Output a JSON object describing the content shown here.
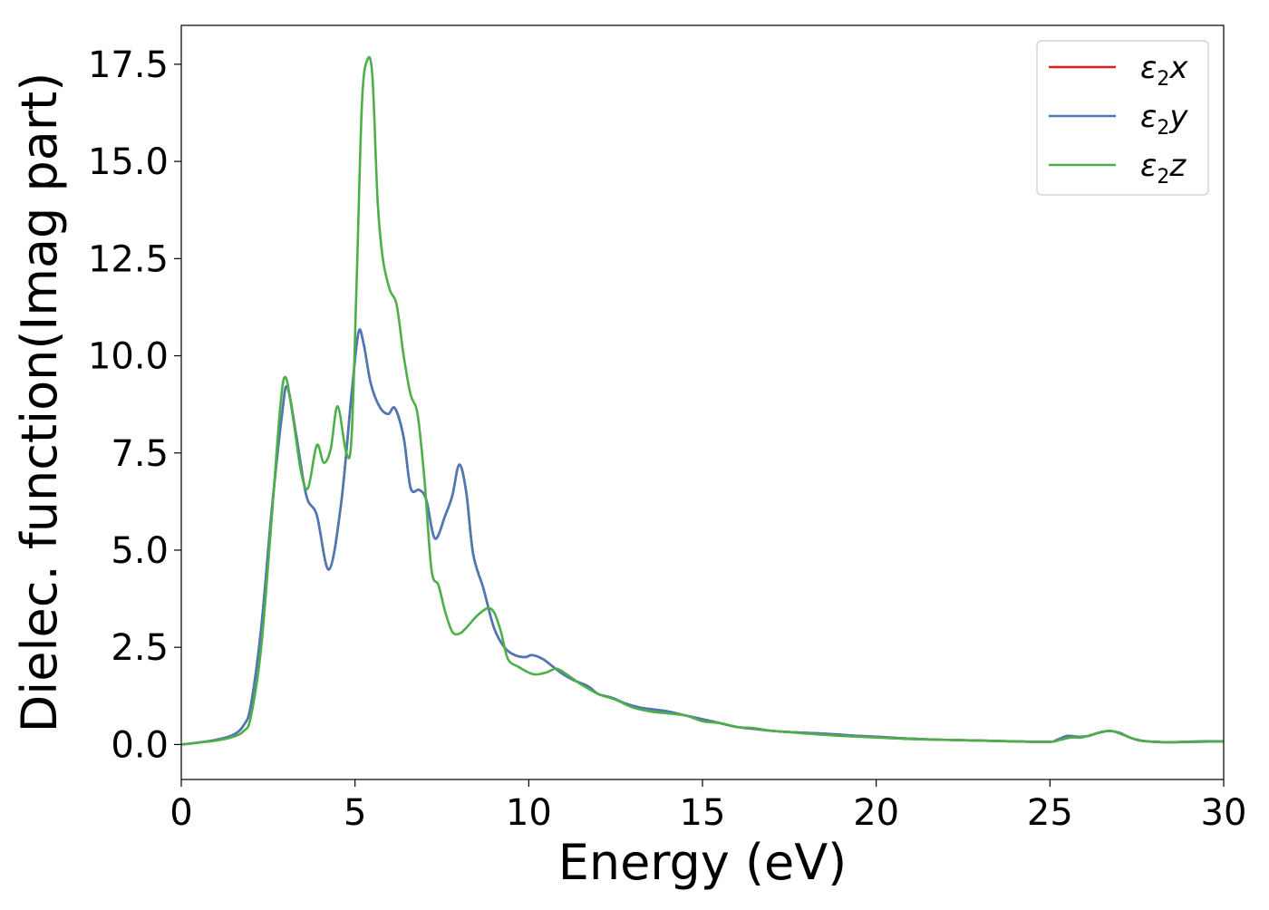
{
  "chart_data": {
    "type": "line",
    "title": "",
    "xlabel": "Energy (eV)",
    "ylabel": "Dielec. function(Imag part)",
    "xlim": [
      0,
      30
    ],
    "ylim": [
      -0.9,
      18.5
    ],
    "xticks": [
      0,
      5,
      10,
      15,
      20,
      25,
      30
    ],
    "xtick_labels": [
      "0",
      "5",
      "10",
      "15",
      "20",
      "25",
      "30"
    ],
    "yticks": [
      0.0,
      2.5,
      5.0,
      7.5,
      10.0,
      12.5,
      15.0,
      17.5
    ],
    "ytick_labels": [
      "0.0",
      "2.5",
      "5.0",
      "7.5",
      "10.0",
      "12.5",
      "15.0",
      "17.5"
    ],
    "grid": false,
    "legend_position": "top-right",
    "series": [
      {
        "name": "ε2x",
        "base": "ε",
        "sub": "2",
        "suffix": "x",
        "color": "#e41a1c",
        "x": [
          0,
          0.5,
          1.0,
          1.5,
          1.8,
          2.0,
          2.3,
          2.6,
          2.9,
          3.05,
          3.3,
          3.6,
          3.9,
          4.25,
          4.6,
          4.9,
          5.1,
          5.25,
          5.45,
          5.7,
          5.95,
          6.15,
          6.4,
          6.6,
          6.85,
          7.05,
          7.3,
          7.6,
          7.8,
          8.0,
          8.2,
          8.4,
          8.7,
          9.0,
          9.3,
          9.6,
          9.9,
          10.1,
          10.4,
          10.7,
          11.0,
          11.3,
          11.7,
          12.0,
          12.4,
          12.8,
          13.2,
          13.6,
          14.0,
          14.5,
          15.0,
          15.5,
          16.0,
          16.5,
          17.0,
          17.5,
          18.0,
          18.5,
          19.0,
          19.5,
          20.0,
          21.0,
          22.0,
          23.0,
          24.0,
          25.0,
          25.2,
          25.5,
          25.8,
          26.1,
          26.4,
          26.7,
          27.0,
          27.3,
          27.6,
          28.0,
          28.5,
          29.0,
          29.5,
          30.0
        ],
        "y": [
          0.0,
          0.05,
          0.12,
          0.25,
          0.5,
          1.0,
          3.0,
          6.0,
          8.5,
          9.2,
          8.0,
          6.4,
          5.9,
          4.5,
          6.2,
          9.0,
          10.6,
          10.3,
          9.3,
          8.7,
          8.5,
          8.65,
          7.9,
          6.6,
          6.55,
          6.3,
          5.3,
          5.9,
          6.4,
          7.2,
          6.5,
          4.9,
          4.0,
          3.0,
          2.5,
          2.3,
          2.25,
          2.3,
          2.2,
          2.0,
          1.8,
          1.65,
          1.5,
          1.3,
          1.2,
          1.05,
          0.95,
          0.9,
          0.85,
          0.75,
          0.65,
          0.55,
          0.45,
          0.4,
          0.35,
          0.32,
          0.3,
          0.28,
          0.25,
          0.22,
          0.2,
          0.15,
          0.12,
          0.1,
          0.08,
          0.07,
          0.12,
          0.22,
          0.2,
          0.22,
          0.3,
          0.35,
          0.3,
          0.18,
          0.1,
          0.07,
          0.06,
          0.07,
          0.08,
          0.08
        ]
      },
      {
        "name": "ε2y",
        "base": "ε",
        "sub": "2",
        "suffix": "y",
        "color": "#4a7ab5",
        "x": [
          0,
          0.5,
          1.0,
          1.5,
          1.8,
          2.0,
          2.3,
          2.6,
          2.9,
          3.05,
          3.3,
          3.6,
          3.9,
          4.25,
          4.6,
          4.9,
          5.1,
          5.25,
          5.45,
          5.7,
          5.95,
          6.15,
          6.4,
          6.6,
          6.85,
          7.05,
          7.3,
          7.6,
          7.8,
          8.0,
          8.2,
          8.4,
          8.7,
          9.0,
          9.3,
          9.6,
          9.9,
          10.1,
          10.4,
          10.7,
          11.0,
          11.3,
          11.7,
          12.0,
          12.4,
          12.8,
          13.2,
          13.6,
          14.0,
          14.5,
          15.0,
          15.5,
          16.0,
          16.5,
          17.0,
          17.5,
          18.0,
          18.5,
          19.0,
          19.5,
          20.0,
          21.0,
          22.0,
          23.0,
          24.0,
          25.0,
          25.2,
          25.5,
          25.8,
          26.1,
          26.4,
          26.7,
          27.0,
          27.3,
          27.6,
          28.0,
          28.5,
          29.0,
          29.5,
          30.0
        ],
        "y": [
          0.0,
          0.05,
          0.12,
          0.25,
          0.5,
          1.0,
          3.0,
          6.0,
          8.5,
          9.2,
          8.0,
          6.4,
          5.9,
          4.5,
          6.2,
          9.0,
          10.6,
          10.3,
          9.3,
          8.7,
          8.5,
          8.65,
          7.9,
          6.6,
          6.55,
          6.3,
          5.3,
          5.9,
          6.4,
          7.2,
          6.5,
          4.9,
          4.0,
          3.0,
          2.5,
          2.3,
          2.25,
          2.3,
          2.2,
          2.0,
          1.8,
          1.65,
          1.5,
          1.3,
          1.2,
          1.05,
          0.95,
          0.9,
          0.85,
          0.75,
          0.65,
          0.55,
          0.45,
          0.4,
          0.35,
          0.32,
          0.3,
          0.28,
          0.25,
          0.22,
          0.2,
          0.15,
          0.12,
          0.1,
          0.08,
          0.07,
          0.12,
          0.22,
          0.2,
          0.22,
          0.3,
          0.35,
          0.3,
          0.18,
          0.1,
          0.07,
          0.06,
          0.07,
          0.08,
          0.08
        ]
      },
      {
        "name": "ε2z",
        "base": "ε",
        "sub": "2",
        "suffix": "z",
        "color": "#4daf4a",
        "x": [
          0,
          0.5,
          1.0,
          1.5,
          1.8,
          2.0,
          2.3,
          2.6,
          2.85,
          3.0,
          3.2,
          3.45,
          3.65,
          3.9,
          4.1,
          4.3,
          4.5,
          4.75,
          4.9,
          5.05,
          5.2,
          5.35,
          5.5,
          5.65,
          5.8,
          6.0,
          6.2,
          6.4,
          6.6,
          6.8,
          7.0,
          7.2,
          7.4,
          7.6,
          7.8,
          8.0,
          8.2,
          8.5,
          8.8,
          9.0,
          9.2,
          9.4,
          9.7,
          10.0,
          10.2,
          10.5,
          10.8,
          11.1,
          11.5,
          12.0,
          12.5,
          13.0,
          13.5,
          14.0,
          14.5,
          15.0,
          15.5,
          16.0,
          16.5,
          17.0,
          17.5,
          18.0,
          18.5,
          19.0,
          20.0,
          21.0,
          22.0,
          23.0,
          24.0,
          25.0,
          25.3,
          25.6,
          25.9,
          26.2,
          26.5,
          26.8,
          27.1,
          27.4,
          27.8,
          28.2,
          28.8,
          29.4,
          30.0
        ],
        "y": [
          0.0,
          0.05,
          0.1,
          0.2,
          0.35,
          0.7,
          2.5,
          5.8,
          8.7,
          9.45,
          8.5,
          7.0,
          6.6,
          7.7,
          7.25,
          7.6,
          8.7,
          7.5,
          7.9,
          12.0,
          16.5,
          17.6,
          17.2,
          14.0,
          12.5,
          11.7,
          11.3,
          10.0,
          9.0,
          8.5,
          6.8,
          4.5,
          4.1,
          3.4,
          2.9,
          2.85,
          3.0,
          3.3,
          3.5,
          3.4,
          2.9,
          2.2,
          2.0,
          1.85,
          1.8,
          1.85,
          1.95,
          1.8,
          1.55,
          1.3,
          1.15,
          0.95,
          0.85,
          0.8,
          0.75,
          0.6,
          0.55,
          0.45,
          0.42,
          0.35,
          0.32,
          0.28,
          0.25,
          0.22,
          0.18,
          0.14,
          0.12,
          0.1,
          0.08,
          0.07,
          0.12,
          0.18,
          0.18,
          0.25,
          0.33,
          0.34,
          0.25,
          0.15,
          0.08,
          0.06,
          0.06,
          0.07,
          0.08
        ]
      }
    ]
  }
}
